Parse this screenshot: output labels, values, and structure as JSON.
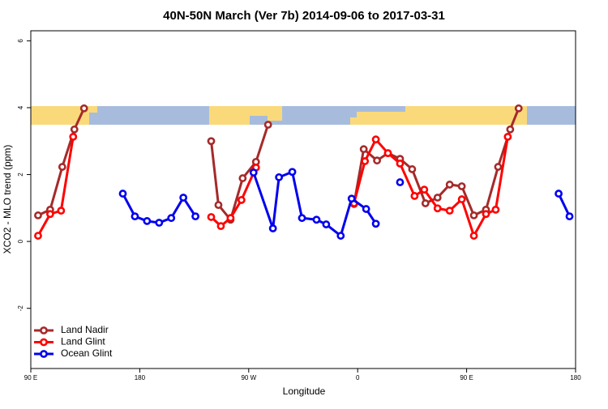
{
  "chart_data": {
    "type": "line",
    "title": "40N-50N March (Ver 7b)   2014-09-06 to 2017-03-31",
    "x_label": "Longitude",
    "y_label": "XCO2 - MLO trend (ppm)",
    "xlim": [
      90,
      540
    ],
    "xticks": [
      {
        "value": 90,
        "label": "90 E"
      },
      {
        "value": 180,
        "label": "180"
      },
      {
        "value": 270,
        "label": "90 W"
      },
      {
        "value": 360,
        "label": "0"
      },
      {
        "value": 450,
        "label": "90 E"
      },
      {
        "value": 540,
        "label": "180"
      }
    ],
    "ylim": [
      -3.8,
      6.3
    ],
    "yticks": [
      -2,
      0,
      2,
      4,
      6
    ],
    "legend": "bottom-left",
    "series": [
      {
        "name": "Land Nadir",
        "color": "#a52a2a",
        "x": [
          96,
          106,
          116,
          126,
          134,
          null,
          239,
          245,
          255,
          265,
          276,
          286,
          null,
          357,
          365,
          376,
          385,
          395,
          405,
          416,
          426,
          436,
          446,
          456,
          466,
          476,
          486,
          493
        ],
        "values": [
          0.78,
          0.95,
          2.23,
          3.35,
          3.98,
          null,
          3.0,
          1.09,
          0.65,
          1.89,
          2.38,
          3.49,
          null,
          1.12,
          2.76,
          2.42,
          2.64,
          2.47,
          2.16,
          1.14,
          1.31,
          1.7,
          1.65,
          0.78,
          0.95,
          2.23,
          3.35,
          3.98
        ]
      },
      {
        "name": "Land Glint",
        "color": "#ff0000",
        "x": [
          96,
          106,
          115,
          125,
          null,
          239,
          247,
          255,
          264,
          276,
          null,
          357,
          366,
          375,
          385,
          395,
          407,
          415,
          426,
          436,
          446,
          456,
          466,
          474,
          484
        ],
        "values": [
          0.17,
          0.82,
          0.92,
          3.13,
          null,
          0.73,
          0.46,
          0.7,
          1.24,
          2.21,
          null,
          1.14,
          2.4,
          3.05,
          2.64,
          2.33,
          1.36,
          1.55,
          0.99,
          0.92,
          1.26,
          0.17,
          0.82,
          0.95,
          3.13
        ]
      },
      {
        "name": "Ocean Glint",
        "color": "#0000ee",
        "x": [
          166,
          176,
          186,
          196,
          206,
          216,
          226,
          null,
          274,
          290,
          295,
          306,
          314,
          326,
          334,
          346,
          355,
          367,
          375,
          null,
          395,
          null,
          526,
          535
        ],
        "values": [
          1.43,
          0.75,
          0.61,
          0.56,
          0.7,
          1.31,
          0.75,
          null,
          2.06,
          0.39,
          1.92,
          2.08,
          0.7,
          0.65,
          0.51,
          0.17,
          1.28,
          0.97,
          0.53,
          null,
          1.77,
          null,
          1.43,
          0.75
        ]
      }
    ]
  }
}
